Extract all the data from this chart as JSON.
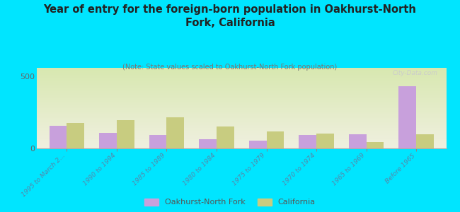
{
  "title": "Year of entry for the foreign-born population in Oakhurst-North\nFork, California",
  "subtitle": "(Note: State values scaled to Oakhurst-North Fork population)",
  "categories": [
    "1995 to March 2...",
    "1990 to 1994",
    "1985 to 1989",
    "1980 to 1984",
    "1975 to 1979",
    "1970 to 1974",
    "1965 to 1969",
    "Before 1965"
  ],
  "oakhurst_values": [
    155,
    110,
    95,
    65,
    55,
    95,
    100,
    430
  ],
  "california_values": [
    175,
    195,
    215,
    150,
    120,
    105,
    45,
    100
  ],
  "oakhurst_color": "#c8a0dc",
  "california_color": "#c8cc80",
  "background_color": "#00e5ff",
  "chart_bg_top": "#d8e8b0",
  "chart_bg_bottom": "#f0f0e0",
  "ylim": [
    0,
    560
  ],
  "yticks": [
    0,
    500
  ],
  "watermark": "City-Data.com",
  "legend_oakhurst": "Oakhurst-North Fork",
  "legend_california": "California",
  "tick_label_color": "#5588aa",
  "ytick_color": "#666666"
}
